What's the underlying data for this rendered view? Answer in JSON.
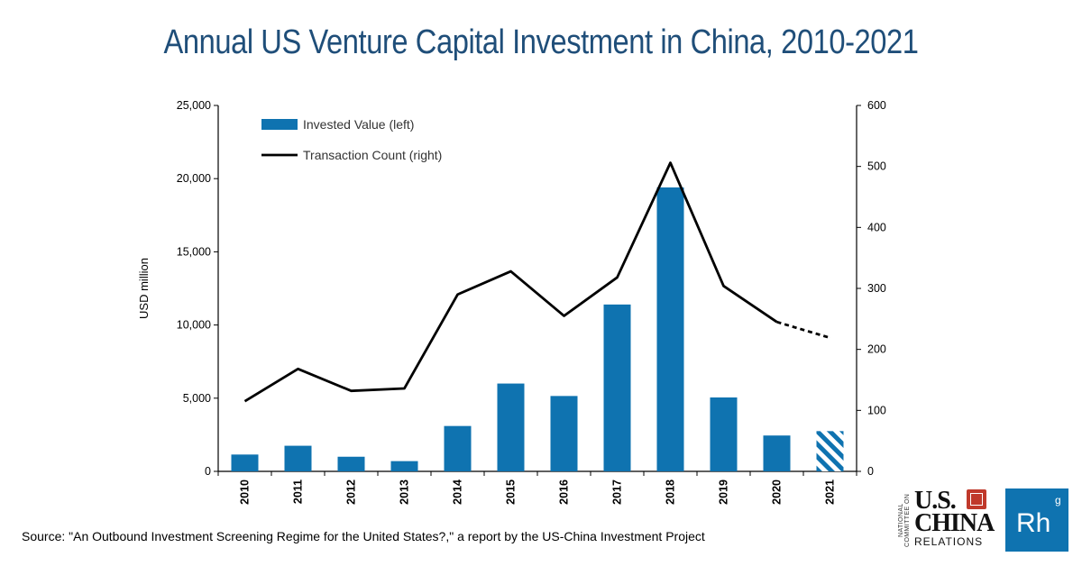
{
  "title": "Annual US Venture Capital Investment in China, 2010-2021",
  "source": "Source: \"An Outbound Investment Screening Regime for the United States?,\" a report by the US-China Investment Project",
  "logos": {
    "ncuscr_side": "NATIONAL COMMITTEE ON",
    "ncuscr_us": "U.S.",
    "ncuscr_china": "CHINA",
    "ncuscr_relations": "RELATIONS",
    "rh_main": "Rh",
    "rh_sup": "g"
  },
  "chart_data": {
    "type": "bar",
    "title": "Annual US Venture Capital Investment in China, 2010-2021",
    "categories": [
      "2010",
      "2011",
      "2012",
      "2013",
      "2014",
      "2015",
      "2016",
      "2017",
      "2018",
      "2019",
      "2020",
      "2021"
    ],
    "ylabel": "USD million",
    "ylim": [
      0,
      25000
    ],
    "yticks": [
      "0",
      "5,000",
      "10,000",
      "15,000",
      "20,000",
      "25,000"
    ],
    "y2lim": [
      0,
      600
    ],
    "y2ticks": [
      "0",
      "100",
      "200",
      "300",
      "400",
      "500",
      "600"
    ],
    "legend_position": "top-left",
    "grid": false,
    "series": [
      {
        "name": "Invested Value (left)",
        "type": "bar",
        "axis": "left",
        "color": "#0f73b0",
        "values": [
          1150,
          1750,
          1000,
          700,
          3100,
          6000,
          5150,
          11400,
          19400,
          5050,
          2450,
          2750
        ],
        "hatched_categories": [
          "2021"
        ]
      },
      {
        "name": "Transaction Count (right)",
        "type": "line",
        "axis": "right",
        "color": "#000000",
        "values": [
          115,
          168,
          132,
          136,
          290,
          328,
          255,
          318,
          506,
          304,
          245,
          219
        ],
        "dashed_categories": [
          "2021"
        ]
      }
    ]
  }
}
